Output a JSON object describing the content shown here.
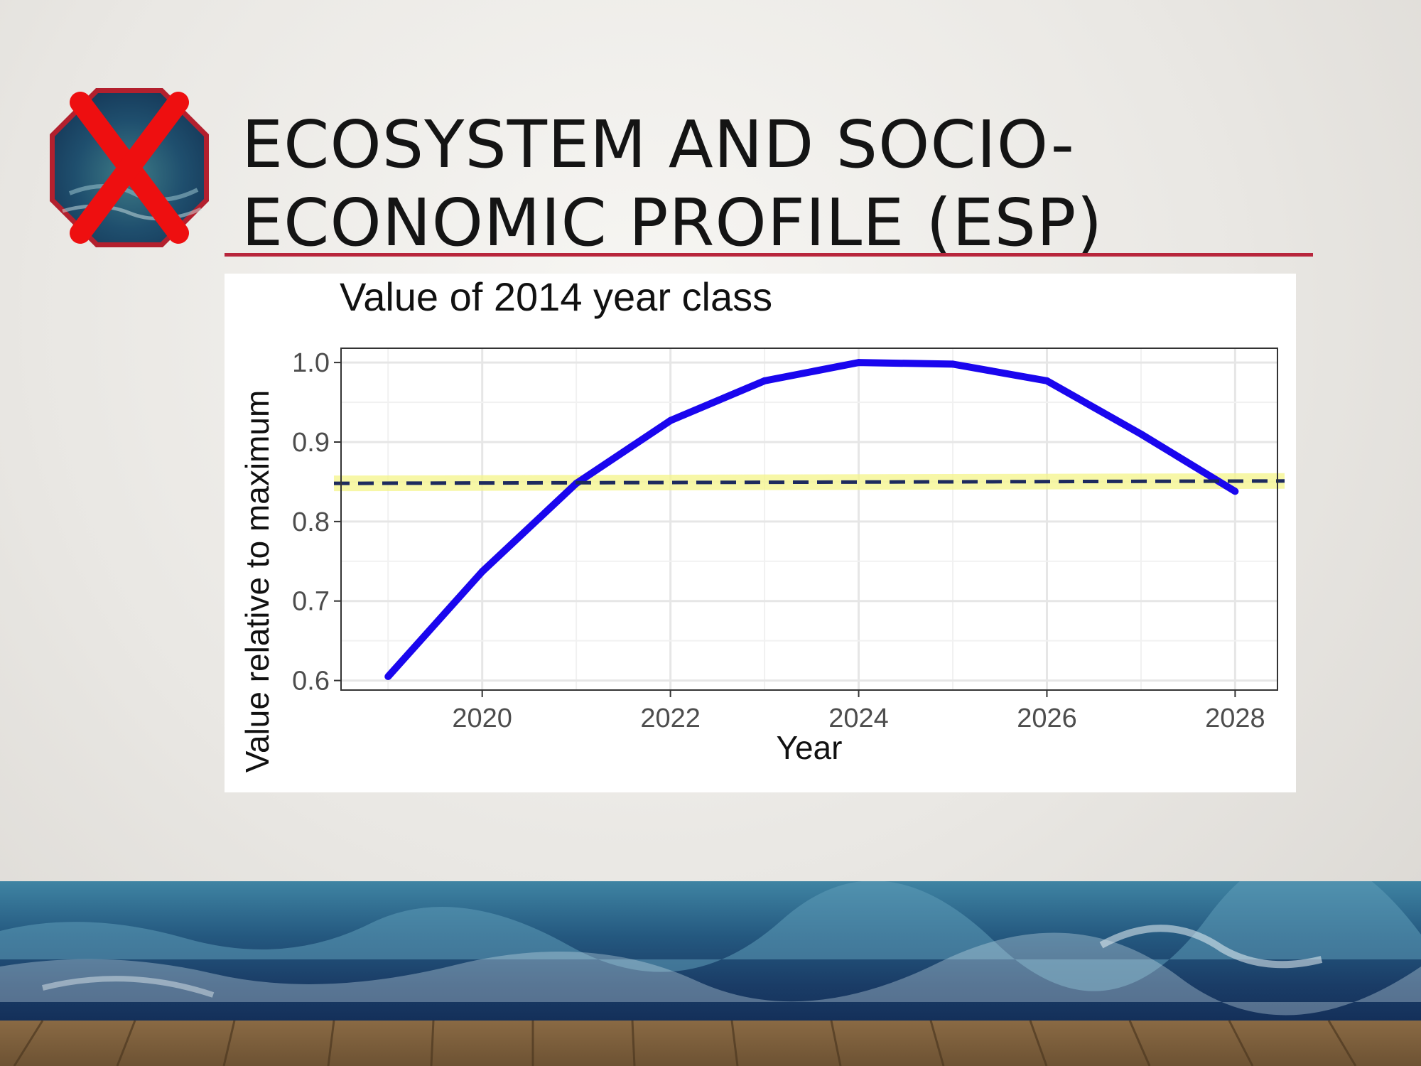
{
  "slide": {
    "title_line1": "ECOSYSTEM AND SOCIO-",
    "title_line2": "ECONOMIC PROFILE (ESP)",
    "accent_color": "#b8263c",
    "stop_icon": "stop-x-icon"
  },
  "chart_data": {
    "type": "line",
    "title": "Value of 2014 year class",
    "xlabel": "Year",
    "ylabel": "Value relative to maximum",
    "xlim": [
      2018.5,
      2028.45
    ],
    "ylim": [
      0.588,
      1.018
    ],
    "x_ticks": [
      2020,
      2022,
      2024,
      2026,
      2028
    ],
    "x_tick_labels": [
      "2020",
      "2022",
      "2024",
      "2026",
      "2028"
    ],
    "y_ticks": [
      0.6,
      0.7,
      0.8,
      0.9,
      1.0
    ],
    "y_tick_labels": [
      "0.6",
      "0.7",
      "0.8",
      "0.9",
      "1.0"
    ],
    "grid": true,
    "series": [
      {
        "x": [
          2019,
          2020,
          2021,
          2022,
          2023,
          2024,
          2025,
          2026,
          2027,
          2028
        ],
        "values": [
          0.605,
          0.737,
          0.848,
          0.927,
          0.977,
          1.0,
          0.998,
          0.977,
          0.91,
          0.838
        ],
        "color": "#1a06ee"
      }
    ],
    "reference_line": {
      "y_start": 0.848,
      "y_end": 0.851,
      "style": "dashed",
      "color": "#1d2a5e",
      "highlight_color": "#f5f58a"
    }
  }
}
